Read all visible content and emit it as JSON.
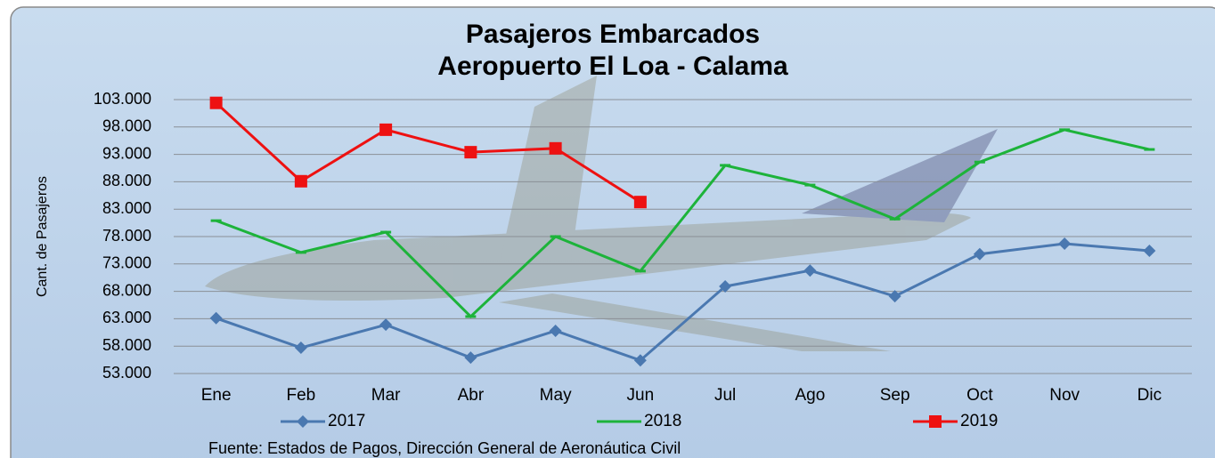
{
  "chart_data": {
    "type": "line",
    "title": "Pasajeros Embarcados",
    "subtitle": "Aeropuerto El Loa - Calama",
    "y_label": "Cant. de Pasajeros",
    "source": "Fuente: Estados de Pagos, Dirección General de Aeronáutica Civil",
    "categories": [
      "Ene",
      "Feb",
      "Mar",
      "Abr",
      "May",
      "Jun",
      "Jul",
      "Ago",
      "Sep",
      "Oct",
      "Nov",
      "Dic"
    ],
    "series": [
      {
        "name": "2017",
        "color": "#4a78b0",
        "marker": "diamond",
        "values": [
          63100,
          57700,
          61900,
          55900,
          60800,
          55400,
          68900,
          71800,
          67100,
          74800,
          76700,
          75400
        ]
      },
      {
        "name": "2018",
        "color": "#1db33a",
        "marker": "dash",
        "values": [
          80900,
          75100,
          78800,
          63400,
          78000,
          71700,
          91000,
          87400,
          81200,
          91600,
          97500,
          93900
        ]
      },
      {
        "name": "2019",
        "color": "#ee1111",
        "marker": "square",
        "values": [
          102400,
          88100,
          97500,
          93400,
          94100,
          84300,
          null,
          null,
          null,
          null,
          null,
          null
        ]
      }
    ],
    "ylim": [
      53000,
      103000
    ],
    "yticks": [
      {
        "value": 53000,
        "label": "53.000"
      },
      {
        "value": 58000,
        "label": "58.000"
      },
      {
        "value": 63000,
        "label": "63.000"
      },
      {
        "value": 68000,
        "label": "68.000"
      },
      {
        "value": 73000,
        "label": "73.000"
      },
      {
        "value": 78000,
        "label": "78.000"
      },
      {
        "value": 83000,
        "label": "83.000"
      },
      {
        "value": 88000,
        "label": "88.000"
      },
      {
        "value": 93000,
        "label": "93.000"
      },
      {
        "value": 98000,
        "label": "98.000"
      },
      {
        "value": 103000,
        "label": "103.000"
      }
    ],
    "grid": true
  }
}
